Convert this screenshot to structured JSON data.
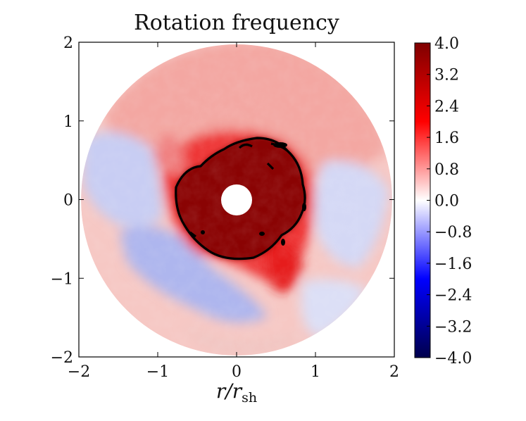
{
  "chart_data": {
    "type": "heatmap",
    "title": "Rotation frequency",
    "xlabel": "r/r",
    "xlabel_subscript": "sh",
    "ylabel": "",
    "xlim": [
      -2,
      2
    ],
    "ylim": [
      -2,
      2
    ],
    "xticks": [
      "−2",
      "−1",
      "0",
      "1",
      "2"
    ],
    "yticks": [
      "2",
      "1",
      "0",
      "−1",
      "−2"
    ],
    "grid": false,
    "colormap": "seismic",
    "colorbar": {
      "range": [
        -4.0,
        4.0
      ],
      "ticks": [
        "4.0",
        "3.2",
        "2.4",
        "1.6",
        "0.8",
        "0.0",
        "−0.8",
        "−1.6",
        "−2.4",
        "−3.2",
        "−4.0"
      ]
    },
    "domain_outer_radius": 1.95,
    "inner_hole_radius": 0.2,
    "contour": {
      "color": "#000000",
      "level": "saturated inner region"
    },
    "regions": [
      {
        "desc": "core",
        "value": 4.0
      },
      {
        "desc": "upper/right band",
        "value": 0.9
      },
      {
        "desc": "left and lower-left lobes",
        "value": -0.9
      },
      {
        "desc": "right edge lobe",
        "value": -0.5
      },
      {
        "desc": "lower-right plume",
        "value": 2.4
      }
    ]
  }
}
